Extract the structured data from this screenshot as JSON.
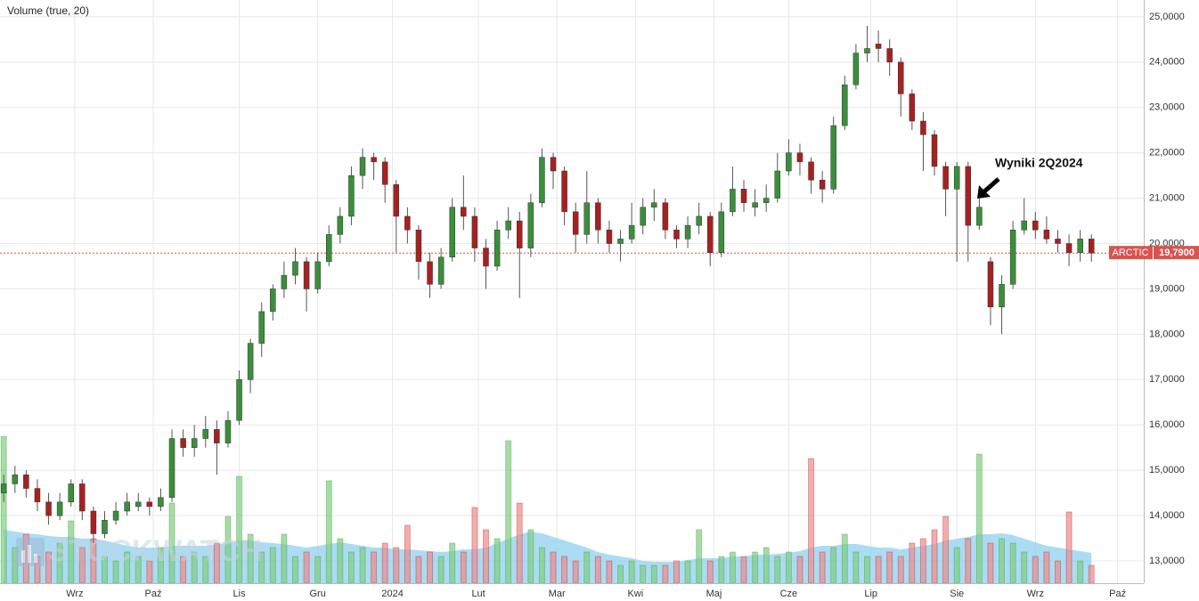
{
  "chart_data": {
    "type": "candlestick",
    "title": "Volume (true, 20)",
    "watermark": "STOCKWATCH",
    "annotation": "Wyniki 2Q2024",
    "last": {
      "name": "ARCTIC",
      "value": 19.79,
      "label": "19,7900",
      "color": "#d9534f"
    },
    "up_color": "#3a8f3a",
    "down_color": "#a82020",
    "volume_up_color": "#7fcf7f",
    "volume_down_color": "#f08a8a",
    "volume_ma_color": "#8fd0f0",
    "xlim": [
      -1,
      305
    ],
    "ylim": [
      12.51,
      25.37
    ],
    "vlim": [
      0,
      200
    ],
    "grid": true,
    "xticks": [
      {
        "value": 19,
        "label": "Wrz"
      },
      {
        "value": 40,
        "label": "Paź"
      },
      {
        "value": 63,
        "label": "Lis"
      },
      {
        "value": 84,
        "label": "Gru"
      },
      {
        "value": 104,
        "label": "2024"
      },
      {
        "value": 127,
        "label": "Lut"
      },
      {
        "value": 148,
        "label": "Mar"
      },
      {
        "value": 169,
        "label": "Kwi"
      },
      {
        "value": 190,
        "label": "Maj"
      },
      {
        "value": 210,
        "label": "Cze"
      },
      {
        "value": 232,
        "label": "Lip"
      },
      {
        "value": 255,
        "label": "Sie"
      },
      {
        "value": 276,
        "label": "Wrz"
      },
      {
        "value": 298,
        "label": "Paź"
      }
    ],
    "yticks": [
      {
        "value": 13,
        "label": "13,0000"
      },
      {
        "value": 14,
        "label": "14,0000"
      },
      {
        "value": 15,
        "label": "15,0000"
      },
      {
        "value": 16,
        "label": "16,0000"
      },
      {
        "value": 17,
        "label": "17,0000"
      },
      {
        "value": 18,
        "label": "18,0000"
      },
      {
        "value": 19,
        "label": "19,0000"
      },
      {
        "value": 20,
        "label": "20,0000"
      },
      {
        "value": 21,
        "label": "21,0000"
      },
      {
        "value": 22,
        "label": "22,0000"
      },
      {
        "value": 23,
        "label": "23,0000"
      },
      {
        "value": 24,
        "label": "24,0000"
      },
      {
        "value": 25,
        "label": "25,0000"
      }
    ],
    "x": [
      0,
      3,
      6,
      9,
      12,
      15,
      18,
      21,
      24,
      27,
      30,
      33,
      36,
      39,
      42,
      45,
      48,
      51,
      54,
      57,
      60,
      63,
      66,
      69,
      72,
      75,
      78,
      81,
      84,
      87,
      90,
      93,
      96,
      99,
      102,
      105,
      108,
      111,
      114,
      117,
      120,
      123,
      126,
      129,
      132,
      135,
      138,
      141,
      144,
      147,
      150,
      153,
      156,
      159,
      162,
      165,
      168,
      171,
      174,
      177,
      180,
      183,
      186,
      189,
      192,
      195,
      198,
      201,
      204,
      207,
      210,
      213,
      216,
      219,
      222,
      225,
      228,
      231,
      234,
      237,
      240,
      243,
      246,
      249,
      252,
      255,
      258,
      261,
      264,
      267,
      270,
      273,
      276,
      279,
      282,
      285,
      288,
      291
    ],
    "open": [
      14.5,
      14.7,
      14.9,
      14.6,
      14.3,
      14.0,
      14.3,
      14.7,
      14.1,
      13.6,
      13.9,
      14.1,
      14.2,
      14.3,
      14.2,
      14.4,
      15.7,
      15.5,
      15.7,
      15.9,
      15.6,
      16.1,
      17.0,
      17.8,
      18.5,
      19.0,
      19.3,
      19.6,
      19.0,
      19.6,
      20.2,
      20.6,
      21.5,
      21.9,
      21.8,
      21.3,
      20.6,
      20.3,
      19.6,
      19.1,
      19.7,
      20.8,
      20.6,
      19.9,
      19.5,
      20.3,
      20.5,
      19.9,
      20.9,
      21.9,
      21.6,
      20.7,
      20.2,
      20.9,
      20.3,
      20.0,
      20.1,
      20.4,
      20.8,
      20.9,
      20.3,
      20.1,
      20.4,
      20.6,
      19.8,
      20.7,
      21.2,
      20.8,
      20.9,
      21.0,
      21.6,
      22.0,
      21.8,
      21.4,
      21.2,
      22.6,
      23.5,
      24.2,
      24.4,
      24.3,
      24.0,
      23.3,
      22.7,
      22.4,
      21.7,
      21.2,
      21.7,
      20.4,
      19.6,
      18.6,
      19.1,
      20.3,
      20.5,
      20.3,
      20.1,
      20.0,
      19.8,
      20.1
    ],
    "high": [
      14.9,
      15.1,
      15.0,
      14.8,
      14.5,
      14.5,
      14.8,
      14.8,
      14.2,
      14.1,
      14.3,
      14.5,
      14.5,
      14.4,
      14.6,
      15.9,
      15.9,
      16.0,
      16.2,
      16.1,
      16.3,
      17.2,
      17.9,
      18.7,
      19.1,
      19.6,
      19.9,
      19.7,
      19.8,
      20.4,
      20.8,
      21.7,
      22.1,
      22.0,
      21.9,
      21.4,
      20.8,
      20.4,
      19.8,
      19.9,
      21.0,
      21.5,
      20.8,
      20.1,
      20.5,
      20.8,
      20.7,
      21.1,
      22.1,
      22.0,
      21.7,
      20.9,
      21.6,
      21.0,
      20.5,
      20.3,
      20.9,
      21.0,
      21.2,
      21.0,
      20.4,
      20.6,
      20.9,
      20.7,
      20.9,
      21.7,
      21.4,
      21.2,
      21.3,
      22.0,
      22.3,
      22.2,
      21.9,
      21.6,
      22.8,
      23.7,
      24.4,
      24.8,
      24.7,
      24.5,
      24.1,
      23.4,
      22.9,
      22.5,
      21.8,
      21.8,
      21.8,
      21.0,
      19.7,
      19.3,
      20.5,
      21.0,
      20.7,
      20.6,
      20.3,
      20.2,
      20.3,
      20.2
    ],
    "low": [
      14.3,
      14.5,
      14.4,
      14.1,
      13.8,
      13.9,
      14.2,
      13.9,
      13.4,
      13.5,
      13.8,
      14.0,
      14.1,
      14.0,
      14.1,
      14.3,
      15.3,
      15.3,
      15.5,
      14.9,
      15.5,
      16.0,
      16.7,
      17.5,
      18.3,
      18.8,
      19.1,
      18.5,
      18.9,
      19.5,
      20.0,
      20.4,
      21.2,
      21.4,
      20.9,
      19.8,
      20.0,
      19.2,
      18.8,
      19.0,
      19.6,
      20.3,
      19.6,
      19.0,
      19.4,
      20.1,
      18.8,
      19.7,
      20.8,
      21.2,
      20.4,
      19.8,
      20.0,
      20.0,
      19.8,
      19.6,
      20.0,
      20.2,
      20.5,
      20.1,
      19.9,
      19.9,
      20.2,
      19.5,
      19.7,
      20.6,
      20.7,
      20.6,
      20.7,
      20.9,
      21.5,
      21.5,
      21.1,
      20.9,
      21.1,
      22.5,
      23.4,
      24.0,
      24.0,
      23.7,
      22.8,
      22.5,
      21.6,
      21.5,
      20.6,
      19.6,
      19.6,
      20.3,
      18.2,
      18.0,
      19.0,
      20.2,
      20.1,
      20.0,
      19.8,
      19.5,
      19.6,
      19.6
    ],
    "close": [
      14.7,
      14.9,
      14.6,
      14.3,
      14.0,
      14.3,
      14.7,
      14.1,
      13.6,
      13.9,
      14.1,
      14.3,
      14.3,
      14.2,
      14.4,
      15.7,
      15.5,
      15.7,
      15.9,
      15.6,
      16.1,
      17.0,
      17.8,
      18.5,
      19.0,
      19.3,
      19.6,
      19.0,
      19.6,
      20.2,
      20.6,
      21.5,
      21.9,
      21.8,
      21.3,
      20.6,
      20.3,
      19.6,
      19.1,
      19.7,
      20.8,
      20.6,
      19.9,
      19.5,
      20.3,
      20.5,
      19.9,
      20.9,
      21.9,
      21.6,
      20.7,
      20.2,
      20.9,
      20.3,
      20.0,
      20.1,
      20.4,
      20.8,
      20.9,
      20.3,
      20.1,
      20.4,
      20.6,
      19.8,
      20.7,
      21.2,
      20.9,
      20.9,
      21.0,
      21.6,
      22.0,
      21.8,
      21.4,
      21.2,
      22.6,
      23.5,
      24.2,
      24.3,
      24.3,
      24.0,
      23.3,
      22.7,
      22.4,
      21.7,
      21.2,
      21.7,
      20.4,
      20.8,
      18.6,
      19.1,
      20.3,
      20.5,
      20.3,
      20.1,
      20.0,
      19.8,
      20.1,
      19.79
    ],
    "volume": [
      165,
      40,
      55,
      30,
      35,
      45,
      70,
      40,
      50,
      30,
      25,
      35,
      30,
      25,
      40,
      90,
      30,
      35,
      30,
      45,
      75,
      120,
      55,
      35,
      40,
      55,
      30,
      35,
      30,
      115,
      50,
      35,
      40,
      35,
      45,
      40,
      65,
      30,
      35,
      30,
      45,
      35,
      85,
      60,
      50,
      160,
      90,
      60,
      40,
      35,
      30,
      25,
      35,
      30,
      25,
      20,
      25,
      20,
      20,
      20,
      25,
      25,
      60,
      25,
      30,
      35,
      30,
      35,
      40,
      30,
      35,
      30,
      140,
      35,
      40,
      55,
      35,
      30,
      30,
      35,
      30,
      45,
      50,
      60,
      75,
      40,
      50,
      145,
      45,
      50,
      45,
      35,
      30,
      35,
      25,
      80,
      25,
      20
    ],
    "volume_ma": [
      60,
      58,
      56,
      55,
      53,
      52,
      52,
      50,
      50,
      48,
      45,
      42,
      40,
      40,
      40,
      42,
      42,
      42,
      42,
      44,
      45,
      48,
      48,
      46,
      45,
      44,
      42,
      40,
      42,
      44,
      46,
      44,
      42,
      40,
      40,
      38,
      38,
      37,
      36,
      35,
      36,
      38,
      38,
      40,
      45,
      50,
      55,
      58,
      56,
      52,
      48,
      44,
      40,
      35,
      32,
      30,
      28,
      25,
      24,
      24,
      24,
      26,
      28,
      28,
      28,
      30,
      30,
      32,
      32,
      33,
      34,
      36,
      40,
      42,
      42,
      44,
      44,
      42,
      40,
      40,
      38,
      40,
      42,
      44,
      48,
      50,
      52,
      55,
      55,
      56,
      54,
      50,
      46,
      42,
      40,
      38,
      36,
      34
    ]
  }
}
